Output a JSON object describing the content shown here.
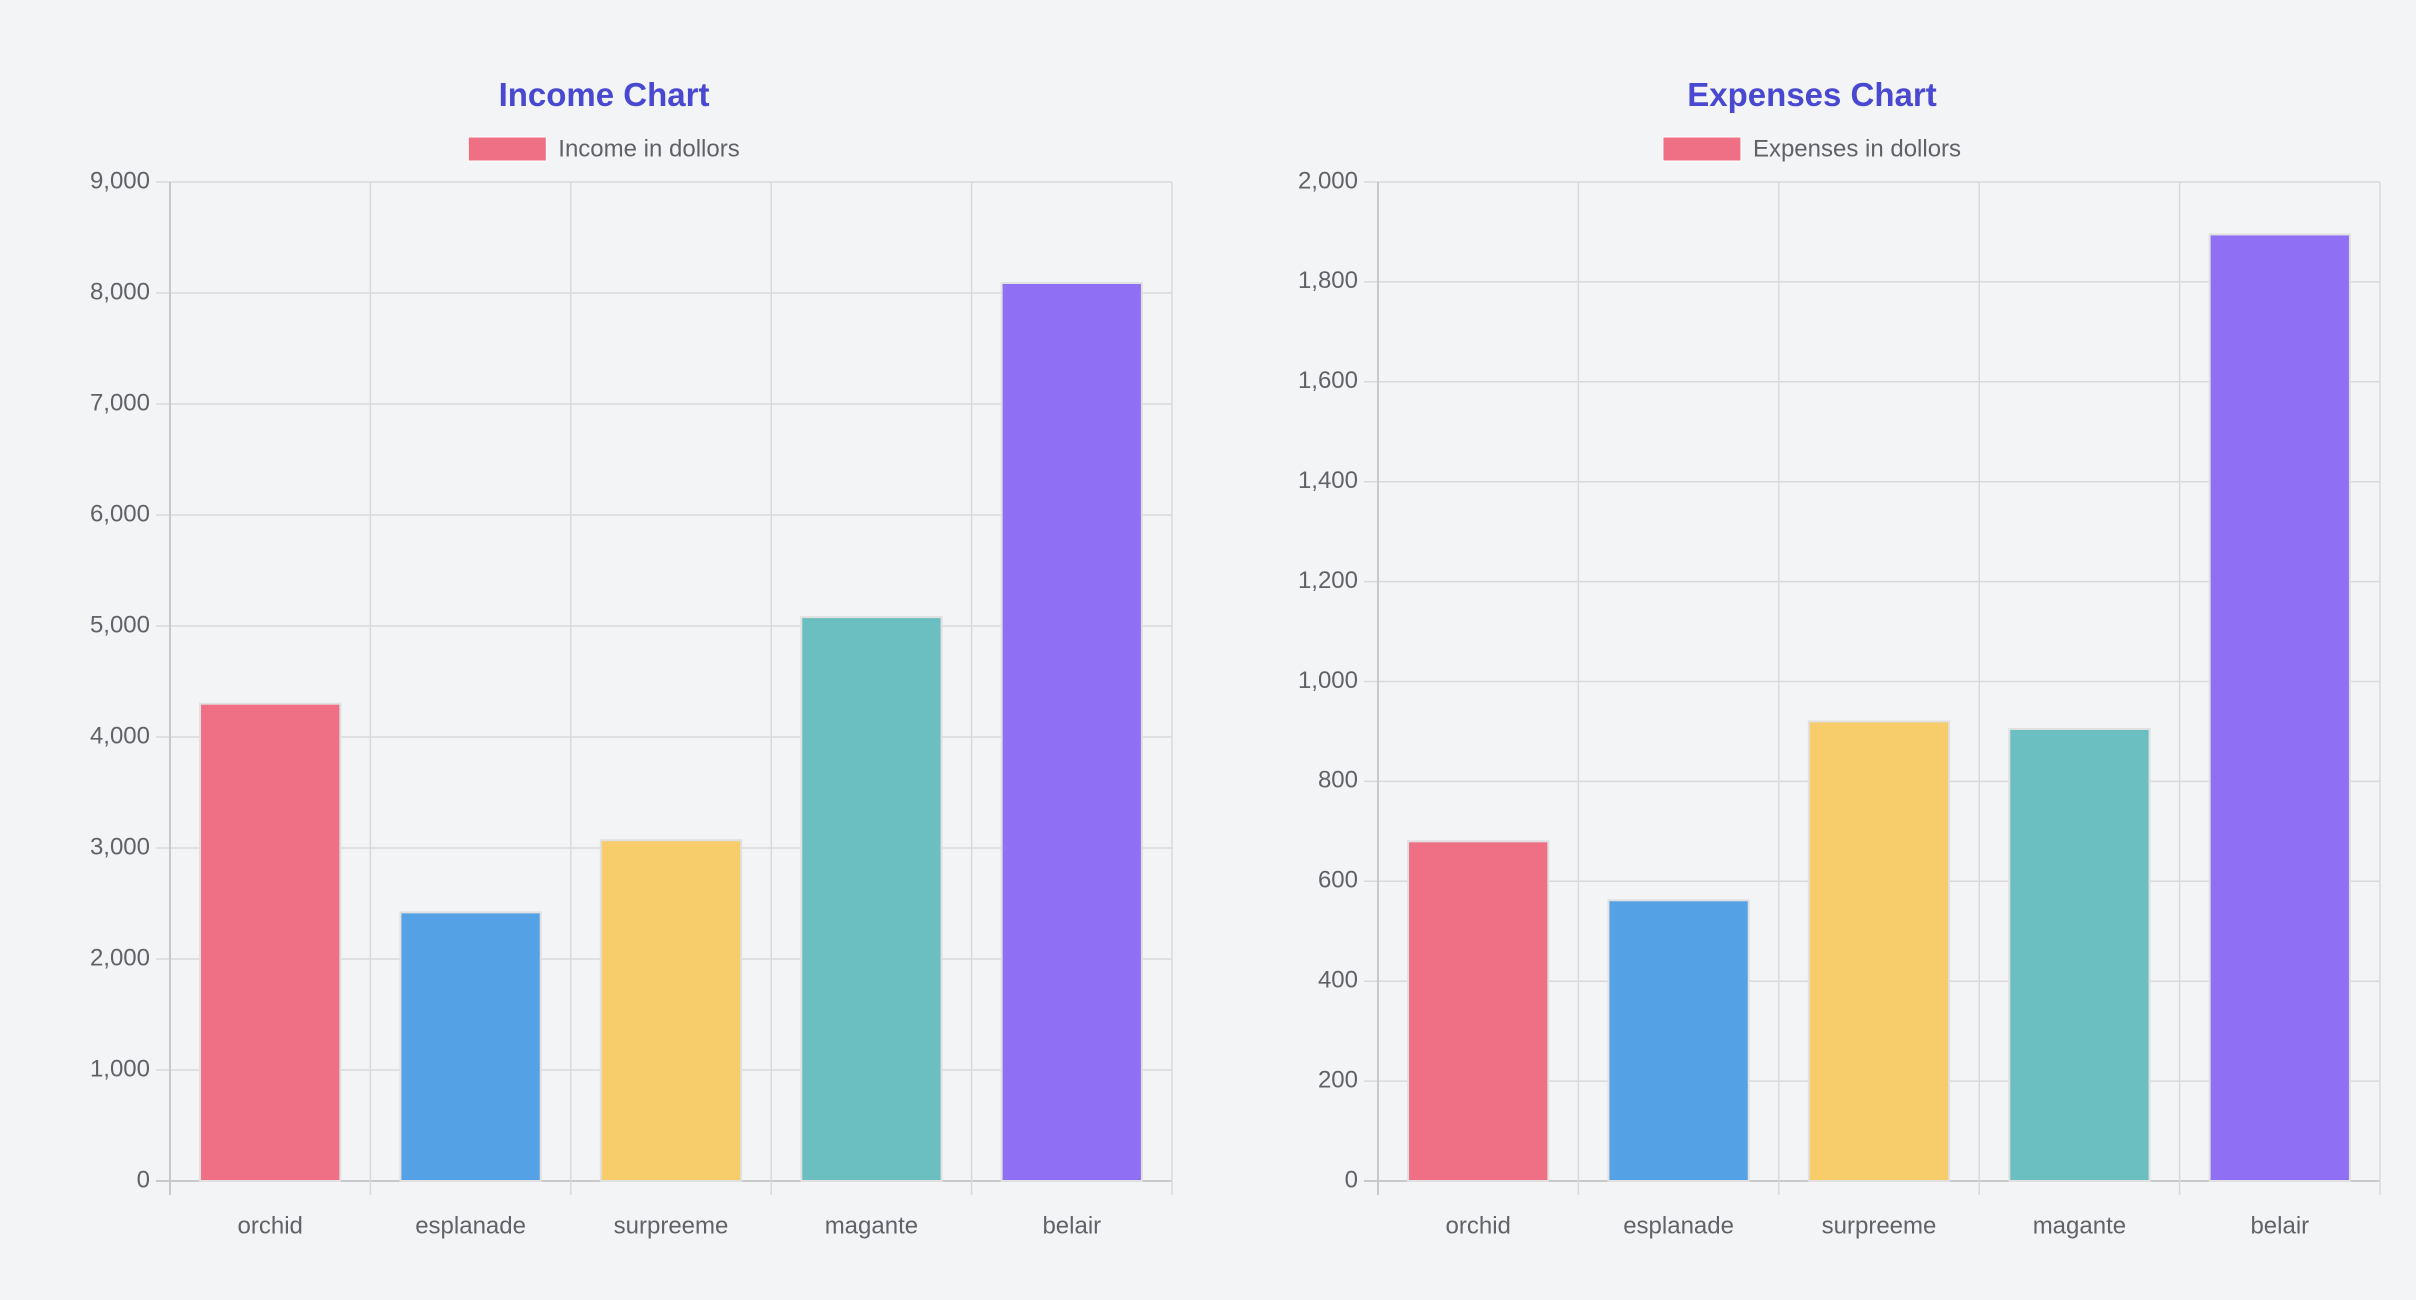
{
  "colors": {
    "background": "#f3f4f6",
    "title": "#4848d0",
    "legend_swatch": "#ef6f84",
    "bar_border": "#e0e0e0",
    "bars": [
      "#ef6f84",
      "#55a1e5",
      "#f7cc6a",
      "#6bbfc1",
      "#8f6ff4"
    ]
  },
  "chart_data": [
    {
      "type": "bar",
      "title": "Income Chart",
      "categories": [
        "orchid",
        "esplanade",
        "surpreeme",
        "magante",
        "belair"
      ],
      "series": [
        {
          "name": "Income in dollors",
          "values": [
            4300,
            2420,
            3070,
            5080,
            8090
          ]
        }
      ],
      "ylim": [
        0,
        9000
      ],
      "yticks": [
        0,
        1000,
        2000,
        3000,
        4000,
        5000,
        6000,
        7000,
        8000,
        9000
      ],
      "ytick_labels": [
        "0",
        "1,000",
        "2,000",
        "3,000",
        "4,000",
        "5,000",
        "6,000",
        "7,000",
        "8,000",
        "9,000"
      ],
      "legend_position": "top",
      "grid": true
    },
    {
      "type": "bar",
      "title": "Expenses Chart",
      "categories": [
        "orchid",
        "esplanade",
        "surpreeme",
        "magante",
        "belair"
      ],
      "series": [
        {
          "name": "Expenses in dollors",
          "values": [
            680,
            562,
            920,
            905,
            1895
          ]
        }
      ],
      "ylim": [
        0,
        2000
      ],
      "yticks": [
        0,
        200,
        400,
        600,
        800,
        1000,
        1200,
        1400,
        1600,
        1800,
        2000
      ],
      "ytick_labels": [
        "0",
        "200",
        "400",
        "600",
        "800",
        "1,000",
        "1,200",
        "1,400",
        "1,600",
        "1,800",
        "2,000"
      ],
      "legend_position": "top",
      "grid": true
    }
  ]
}
